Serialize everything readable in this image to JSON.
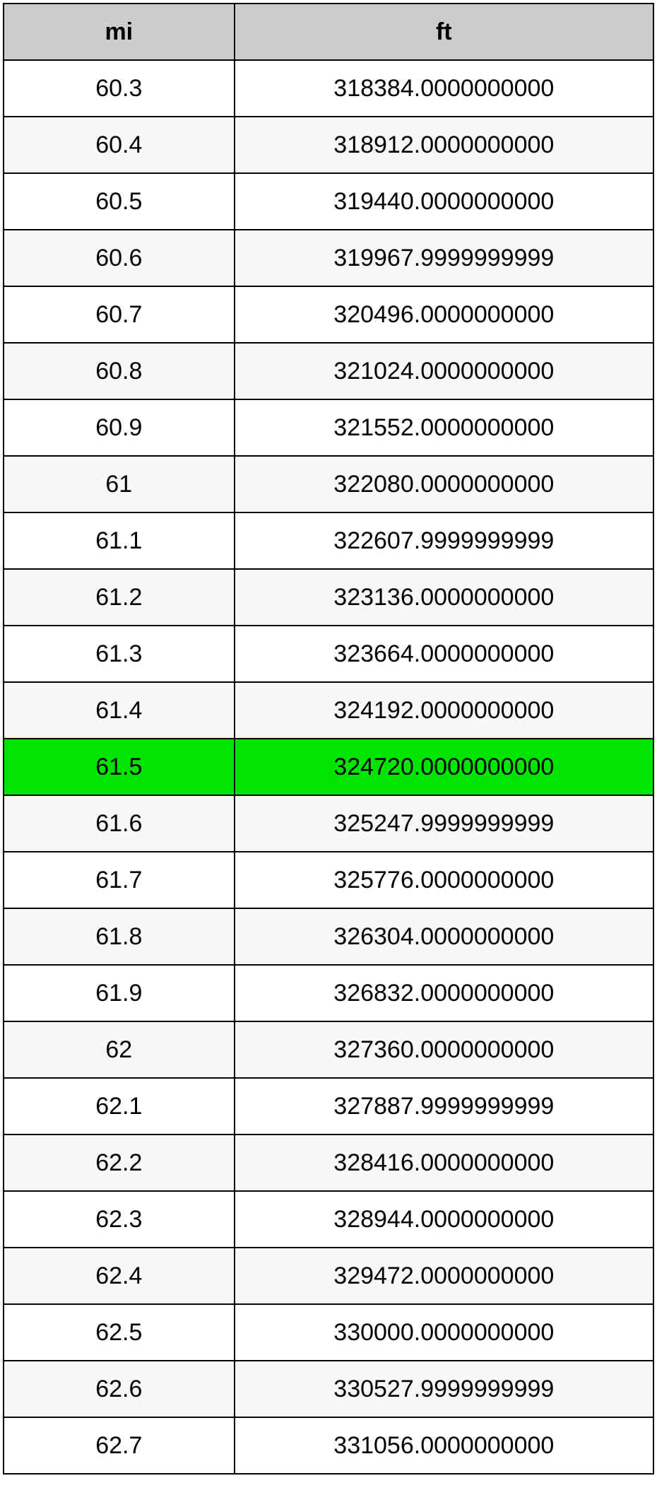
{
  "table": {
    "header_bg": "#cccccc",
    "row_alt_bg": "#f7f7f7",
    "row_bg": "#ffffff",
    "highlight_bg": "#00e500",
    "highlight_index": 12,
    "columns": [
      "mi",
      "ft"
    ],
    "rows": [
      [
        "60.3",
        "318384.0000000000"
      ],
      [
        "60.4",
        "318912.0000000000"
      ],
      [
        "60.5",
        "319440.0000000000"
      ],
      [
        "60.6",
        "319967.9999999999"
      ],
      [
        "60.7",
        "320496.0000000000"
      ],
      [
        "60.8",
        "321024.0000000000"
      ],
      [
        "60.9",
        "321552.0000000000"
      ],
      [
        "61",
        "322080.0000000000"
      ],
      [
        "61.1",
        "322607.9999999999"
      ],
      [
        "61.2",
        "323136.0000000000"
      ],
      [
        "61.3",
        "323664.0000000000"
      ],
      [
        "61.4",
        "324192.0000000000"
      ],
      [
        "61.5",
        "324720.0000000000"
      ],
      [
        "61.6",
        "325247.9999999999"
      ],
      [
        "61.7",
        "325776.0000000000"
      ],
      [
        "61.8",
        "326304.0000000000"
      ],
      [
        "61.9",
        "326832.0000000000"
      ],
      [
        "62",
        "327360.0000000000"
      ],
      [
        "62.1",
        "327887.9999999999"
      ],
      [
        "62.2",
        "328416.0000000000"
      ],
      [
        "62.3",
        "328944.0000000000"
      ],
      [
        "62.4",
        "329472.0000000000"
      ],
      [
        "62.5",
        "330000.0000000000"
      ],
      [
        "62.6",
        "330527.9999999999"
      ],
      [
        "62.7",
        "331056.0000000000"
      ]
    ]
  }
}
